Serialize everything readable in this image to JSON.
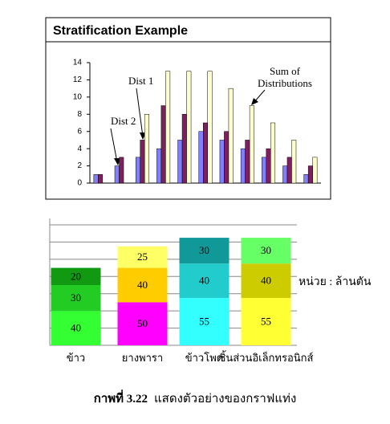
{
  "chart_data": [
    {
      "type": "bar",
      "title": "Stratification Example",
      "categories": [
        null,
        null,
        null,
        null,
        null,
        null,
        null,
        null,
        null,
        null,
        null
      ],
      "series": [
        {
          "name": "Dist 2",
          "color": "#8080ff",
          "values": [
            1,
            2,
            3,
            4,
            5,
            6,
            5,
            4,
            3,
            2,
            1
          ]
        },
        {
          "name": "Dist 1",
          "color": "#7f1f5f",
          "values": [
            1,
            3,
            5,
            9,
            8,
            7,
            6,
            5,
            4,
            3,
            2
          ]
        },
        {
          "name": "Sum of Distributions",
          "color": "#ffffcc",
          "values": [
            null,
            null,
            8,
            13,
            13,
            13,
            11,
            9,
            7,
            5,
            3
          ]
        }
      ],
      "annotations": [
        {
          "lines": [
            "Dist 1"
          ]
        },
        {
          "lines": [
            "Dist 2"
          ]
        },
        {
          "lines": [
            "Sum of",
            "Distributions"
          ]
        }
      ],
      "ylim": [
        0,
        14
      ],
      "yticks": [
        0,
        2,
        4,
        6,
        8,
        10,
        12,
        14
      ],
      "grid": false,
      "legend": false
    },
    {
      "type": "stacked_bar",
      "categories": [
        "ข้าว",
        "ยางพารา",
        "ข้าวโพด",
        "ชิ้นส่วนอิเล็กทรอนิกส์"
      ],
      "series": [
        {
          "values": [
            40,
            50,
            55,
            55
          ],
          "colors": [
            "#33ff33",
            "#ff00ff",
            "#33ffff",
            "#ffff33"
          ]
        },
        {
          "values": [
            30,
            40,
            40,
            40
          ],
          "colors": [
            "#22cc22",
            "#ffcc00",
            "#22cccc",
            "#cccc00"
          ]
        },
        {
          "values": [
            20,
            25,
            30,
            30
          ],
          "colors": [
            "#119911",
            "#ffff66",
            "#119999",
            "#66ff66"
          ]
        }
      ],
      "annotations": [
        {
          "lines": [
            "หน่วย : ล้านตัน"
          ]
        }
      ],
      "ylim": [
        0,
        140
      ],
      "yticks": [
        0,
        20,
        40,
        60,
        80,
        100,
        120,
        140
      ],
      "grid": true,
      "tick_labels": false,
      "legend": false
    }
  ],
  "caption": {
    "label": "กาพที่ 3.22",
    "text": "แสดงตัวอย่างของกราฟแท่ง"
  }
}
